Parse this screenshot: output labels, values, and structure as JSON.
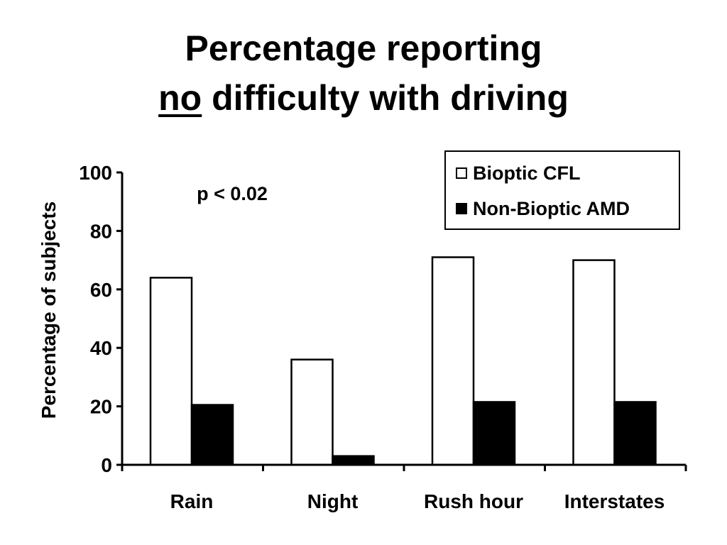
{
  "title": {
    "line1": "Percentage reporting",
    "line2_emphasis": "no",
    "line2_rest": " difficulty with driving"
  },
  "colors": {
    "bioptic": "#ffffff",
    "non_bioptic": "#000000",
    "axis": "#000000"
  },
  "chart_data": {
    "type": "bar",
    "categories": [
      "Rain",
      "Night",
      "Rush hour",
      "Interstates"
    ],
    "series": [
      {
        "name": "Bioptic CFL",
        "values": [
          64,
          36,
          71,
          70
        ],
        "color": "#ffffff"
      },
      {
        "name": "Non-Bioptic AMD",
        "values": [
          20.5,
          3,
          21.5,
          21.5
        ],
        "color": "#000000"
      }
    ],
    "ylabel": "Percentage of subjects",
    "xlabel": "",
    "ylim": [
      0,
      100
    ],
    "yticks": [
      0,
      20,
      40,
      60,
      80,
      100
    ],
    "annotation": "p < 0.02",
    "legend_position": "top-right",
    "grid": false
  }
}
